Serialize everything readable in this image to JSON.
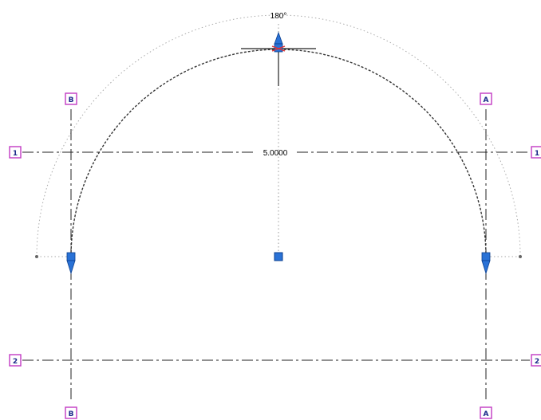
{
  "viewport": {
    "width": 678,
    "height": 527
  },
  "colors": {
    "background": "#ffffff",
    "grid_line": "#222222",
    "bubble_border": "#c23ac3",
    "bubble_text": "#1b2a8a",
    "grip_fill": "#2a72d6",
    "grip_dark": "#0b3f8f",
    "arc": "#333333",
    "guide": "#999999"
  },
  "angle_label": "180°",
  "radius_dimension": "5.0000",
  "grid_markers": {
    "vertical_left": "B",
    "vertical_right": "A",
    "horizontal_top": "1",
    "horizontal_bottom": "2"
  },
  "icons": {
    "top_grip": "shape-handle-up-arrow-icon",
    "center_grip": "center-point-grip-icon",
    "left_end_grip": "arc-end-grip-down-arrow-icon",
    "right_end_grip": "arc-end-grip-down-arrow-icon"
  }
}
